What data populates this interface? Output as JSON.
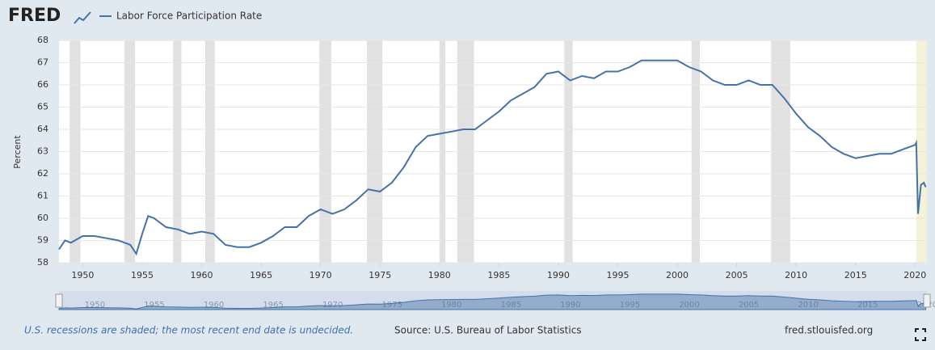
{
  "chart_data": {
    "type": "line",
    "brand": "FRED",
    "ylabel": "Percent",
    "note": "U.S. recessions are shaded; the most recent end date is undecided.",
    "source": "Source: U.S. Bureau of Labor Statistics",
    "site": "fred.stlouisfed.org",
    "x": [
      1948,
      1948.5,
      1949,
      1950,
      1951,
      1952,
      1953,
      1954,
      1954.5,
      1955,
      1955.5,
      1956,
      1957,
      1958,
      1959,
      1960,
      1961,
      1962,
      1963,
      1964,
      1965,
      1966,
      1967,
      1968,
      1969,
      1970,
      1971,
      1972,
      1973,
      1974,
      1975,
      1976,
      1977,
      1978,
      1979,
      1980,
      1981,
      1982,
      1983,
      1984,
      1985,
      1986,
      1987,
      1988,
      1989,
      1990,
      1991,
      1992,
      1993,
      1994,
      1995,
      1996,
      1997,
      1998,
      1999,
      2000,
      2001,
      2002,
      2003,
      2004,
      2005,
      2006,
      2007,
      2008,
      2009,
      2010,
      2011,
      2012,
      2013,
      2014,
      2015,
      2016,
      2017,
      2018,
      2019,
      2020,
      2020.1,
      2020.25,
      2020.5,
      2020.75,
      2020.9
    ],
    "series": [
      {
        "name": "Labor Force Participation Rate",
        "color": "#4572a7",
        "values": [
          58.6,
          59.0,
          58.9,
          59.2,
          59.2,
          59.1,
          59.0,
          58.8,
          58.4,
          59.3,
          60.1,
          60.0,
          59.6,
          59.5,
          59.3,
          59.4,
          59.3,
          58.8,
          58.7,
          58.7,
          58.9,
          59.2,
          59.6,
          59.6,
          60.1,
          60.4,
          60.2,
          60.4,
          60.8,
          61.3,
          61.2,
          61.6,
          62.3,
          63.2,
          63.7,
          63.8,
          63.9,
          64.0,
          64.0,
          64.4,
          64.8,
          65.3,
          65.6,
          65.9,
          66.5,
          66.6,
          66.2,
          66.4,
          66.3,
          66.6,
          66.6,
          66.8,
          67.1,
          67.1,
          67.1,
          67.1,
          66.8,
          66.6,
          66.2,
          66.0,
          66.0,
          66.2,
          66.0,
          66.0,
          65.4,
          64.7,
          64.1,
          63.7,
          63.2,
          62.9,
          62.7,
          62.8,
          62.9,
          62.9,
          63.1,
          63.3,
          63.4,
          60.2,
          61.5,
          61.6,
          61.4
        ]
      }
    ],
    "recessions": [
      [
        1948.9,
        1949.8
      ],
      [
        1953.5,
        1954.4
      ],
      [
        1957.6,
        1958.3
      ],
      [
        1960.3,
        1961.1
      ],
      [
        1969.9,
        1970.9
      ],
      [
        1973.9,
        1975.2
      ],
      [
        1980.0,
        1980.5
      ],
      [
        1981.5,
        1982.9
      ],
      [
        1990.5,
        1991.2
      ],
      [
        2001.2,
        2001.9
      ],
      [
        2007.9,
        2009.5
      ],
      [
        2020.1,
        2021
      ]
    ],
    "recession_color": "#e1e1e1",
    "open_recession_color": "#f4f2d8",
    "xlim": [
      1948,
      2021
    ],
    "xticks": [
      1950,
      1955,
      1960,
      1965,
      1970,
      1975,
      1980,
      1985,
      1990,
      1995,
      2000,
      2005,
      2010,
      2015,
      2020
    ],
    "ylim": [
      58,
      68
    ],
    "yticks": [
      58,
      59,
      60,
      61,
      62,
      63,
      64,
      65,
      66,
      67,
      68
    ],
    "grid": true
  }
}
